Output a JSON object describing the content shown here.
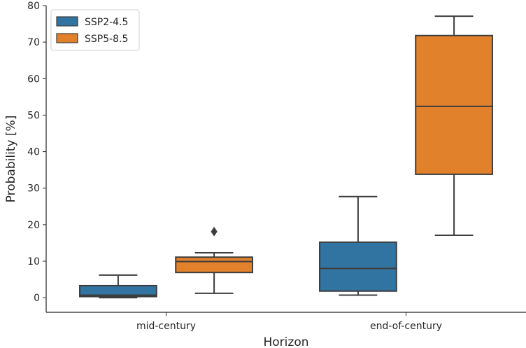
{
  "chart_data": {
    "type": "box",
    "title": "",
    "xlabel": "Horizon",
    "ylabel": "Probability [%]",
    "categories": [
      "mid-century",
      "end-of-century"
    ],
    "ylim": [
      -4,
      80
    ],
    "yticks": [
      0,
      10,
      20,
      30,
      40,
      50,
      60,
      70,
      80
    ],
    "grid": false,
    "legend": {
      "placement": "top-left"
    },
    "series": [
      {
        "name": "SSP2-4.5",
        "color": "#3274a1",
        "boxes": [
          {
            "whisker_low": 0.0,
            "q1": 0.3,
            "median": 0.7,
            "q3": 3.3,
            "whisker_high": 6.2,
            "outliers": []
          },
          {
            "whisker_low": 0.7,
            "q1": 1.8,
            "median": 8.0,
            "q3": 15.2,
            "whisker_high": 27.7,
            "outliers": []
          }
        ]
      },
      {
        "name": "SSP5-8.5",
        "color": "#e1812c",
        "boxes": [
          {
            "whisker_low": 1.2,
            "q1": 6.9,
            "median": 9.9,
            "q3": 11.1,
            "whisker_high": 12.3,
            "outliers": [
              18.1
            ]
          },
          {
            "whisker_low": 17.1,
            "q1": 33.8,
            "median": 52.4,
            "q3": 71.8,
            "whisker_high": 77.1,
            "outliers": []
          }
        ]
      }
    ]
  }
}
